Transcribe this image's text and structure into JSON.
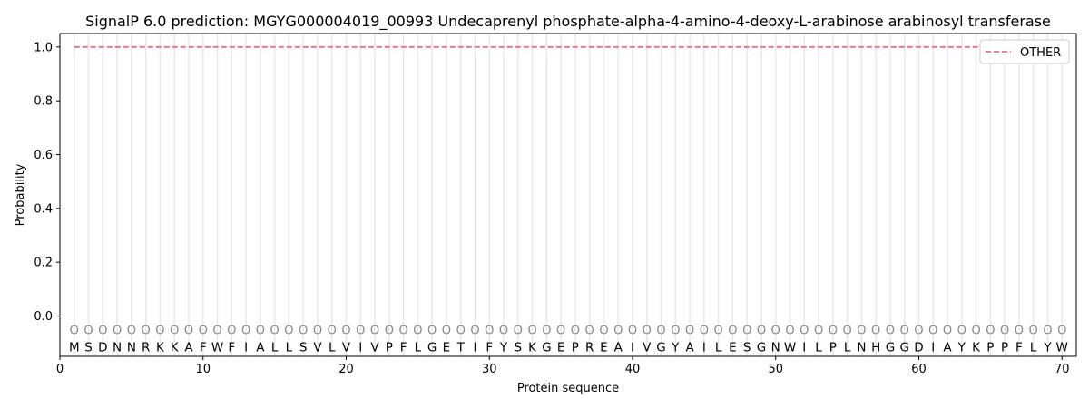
{
  "chart_data": {
    "type": "line",
    "title": "SignalP 6.0 prediction: MGYG000004019_00993 Undecaprenyl phosphate-alpha-4-amino-4-deoxy-L-arabinose arabinosyl transferase",
    "xlabel": "Protein sequence",
    "ylabel": "Probability",
    "xlim": [
      0,
      71
    ],
    "ylim": [
      -0.15,
      1.05
    ],
    "x_ticks": [
      0,
      10,
      20,
      30,
      40,
      50,
      60,
      70
    ],
    "y_ticks": [
      0.0,
      0.2,
      0.4,
      0.6,
      0.8,
      1.0
    ],
    "y_tick_labels": [
      "0.0",
      "0.2",
      "0.4",
      "0.6",
      "0.8",
      "1.0"
    ],
    "sequence": [
      "M",
      "S",
      "D",
      "N",
      "N",
      "R",
      "K",
      "K",
      "A",
      "F",
      "W",
      "F",
      "I",
      "A",
      "L",
      "L",
      "S",
      "V",
      "L",
      "V",
      "I",
      "V",
      "P",
      "F",
      "L",
      "G",
      "E",
      "T",
      "I",
      "F",
      "Y",
      "S",
      "K",
      "G",
      "E",
      "P",
      "R",
      "E",
      "A",
      "I",
      "V",
      "G",
      "Y",
      "A",
      "I",
      "L",
      "E",
      "S",
      "G",
      "N",
      "W",
      "I",
      "L",
      "P",
      "L",
      "N",
      "H",
      "G",
      "G",
      "D",
      "I",
      "A",
      "Y",
      "K",
      "P",
      "P",
      "F",
      "L",
      "Y",
      "W"
    ],
    "region_label": "O",
    "series": [
      {
        "name": "OTHER",
        "color": "#e8737a",
        "style": "dashed",
        "x_start": 1,
        "x_end": 70,
        "value": 1.0
      }
    ],
    "legend_position": "top-right",
    "grid": "vertical lines at each residue"
  }
}
